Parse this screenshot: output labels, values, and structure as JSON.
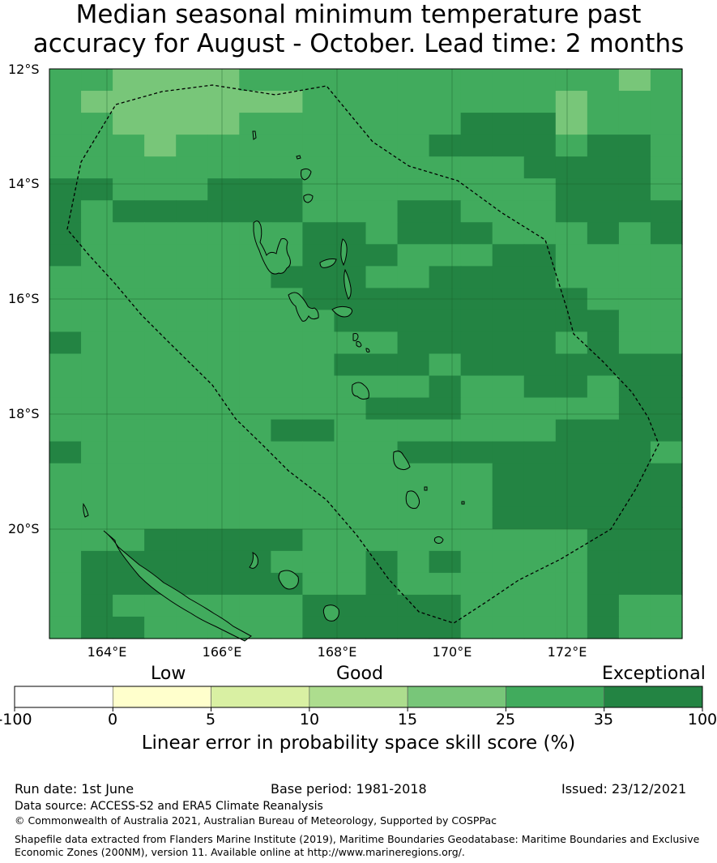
{
  "title": {
    "line1": "Median seasonal minimum temperature past",
    "line2": "accuracy for August - October. Lead time: 2 months"
  },
  "map": {
    "lat_labels": [
      "12°S",
      "14°S",
      "16°S",
      "18°S",
      "20°S"
    ],
    "lon_labels": [
      "164°E",
      "166°E",
      "168°E",
      "170°E",
      "172°E"
    ],
    "legend_categories": {
      "low": "Low",
      "good": "Good",
      "exceptional": "Exceptional"
    },
    "class_colors": {
      "3": "#78c679",
      "4": "#41ab5d",
      "5": "#238443"
    },
    "grid_rows": [
      "44333344444444444434",
      "43333333444444443444",
      "44333344444445553444",
      "44434444444455554554",
      "44444444444444455554",
      "55444555444444445554",
      "54555555444554445555",
      "54444444554555444545",
      "54444444555444554444",
      "44444445554455554444",
      "44444444555555555444",
      "44444444455555555544",
      "54444444444555554544",
      "44444444455545555555",
      "44444444444454455455",
      "44444444445554444455",
      "44444445544444445555",
      "54444444444555555554",
      "44444444444444555555",
      "44444444444444555555",
      "44444444444444555555",
      "44455555444444444555",
      "45555554445454444555",
      "45555555445444444555",
      "45444444555554444544",
      "45544444555554444544"
    ]
  },
  "colorbar": {
    "title": "Linear error in probability space skill score (%)",
    "ticks": [
      "-100",
      "0",
      "5",
      "10",
      "15",
      "25",
      "35",
      "100"
    ],
    "colors": [
      "#ffffff",
      "#ffffcc",
      "#d9f0a3",
      "#addd8e",
      "#78c679",
      "#41ab5d",
      "#238443"
    ]
  },
  "footer": {
    "run_date": "Run date: 1st June",
    "base_period": "Base period: 1981-2018",
    "issued": "Issued: 23/12/2021",
    "data_source": "Data source: ACCESS-S2 and ERA5 Climate Reanalysis",
    "copyright": "© Commonwealth of Australia 2021, Australian Bureau of Meteorology, Supported by COSPPac",
    "shapefile_line1": "Shapefile data extracted from Flanders Marine Institute (2019), Maritime Boundaries Geodatabase: Maritime Boundaries and Exclusive",
    "shapefile_line2": "Economic Zones (200NM), version 11. Available online at http://www.marineregions.org/."
  }
}
